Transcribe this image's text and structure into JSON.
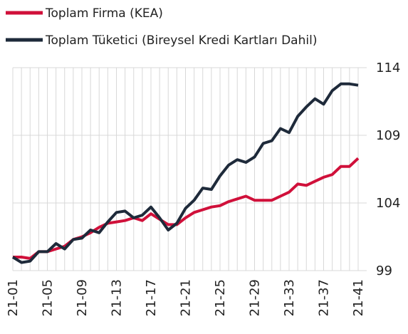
{
  "chart_data": {
    "type": "line",
    "categories": [
      "21-01",
      null,
      null,
      null,
      "21-05",
      null,
      null,
      null,
      "21-09",
      null,
      null,
      null,
      "21-13",
      null,
      null,
      null,
      "21-17",
      null,
      null,
      null,
      "21-21",
      null,
      null,
      null,
      "21-25",
      null,
      null,
      null,
      "21-29",
      null,
      null,
      null,
      "21-33",
      null,
      null,
      null,
      "21-37",
      null,
      null,
      null,
      "21-41"
    ],
    "series": [
      {
        "name": "Toplam Firma (KEA)",
        "color": "#d0103a",
        "values": [
          100.0,
          100.0,
          99.9,
          100.4,
          100.4,
          100.6,
          100.8,
          101.3,
          101.5,
          101.8,
          102.2,
          102.5,
          102.6,
          102.7,
          102.9,
          102.7,
          103.2,
          102.8,
          102.4,
          102.4,
          102.9,
          103.3,
          103.5,
          103.7,
          103.8,
          104.1,
          104.3,
          104.5,
          104.2,
          104.2,
          104.2,
          104.5,
          104.8,
          105.4,
          105.3,
          105.6,
          105.9,
          106.1,
          106.7,
          106.7,
          107.3
        ]
      },
      {
        "name": "Toplam Tüketici (Bireysel Kredi Kartları Dahil)",
        "color": "#1e2a3a",
        "values": [
          100.0,
          99.6,
          99.7,
          100.4,
          100.4,
          101.0,
          100.6,
          101.3,
          101.4,
          102.0,
          101.8,
          102.6,
          103.3,
          103.4,
          102.9,
          103.1,
          103.7,
          102.9,
          102.0,
          102.5,
          103.6,
          104.2,
          105.1,
          105.0,
          106.0,
          106.8,
          107.2,
          107.0,
          107.4,
          108.4,
          108.6,
          109.5,
          109.2,
          110.4,
          111.1,
          111.7,
          111.3,
          112.3,
          112.8,
          112.8,
          112.7
        ]
      }
    ],
    "ylim": [
      99,
      114
    ],
    "yticks": [
      99,
      104,
      109,
      114
    ],
    "grid": true,
    "legend": "top-left"
  }
}
